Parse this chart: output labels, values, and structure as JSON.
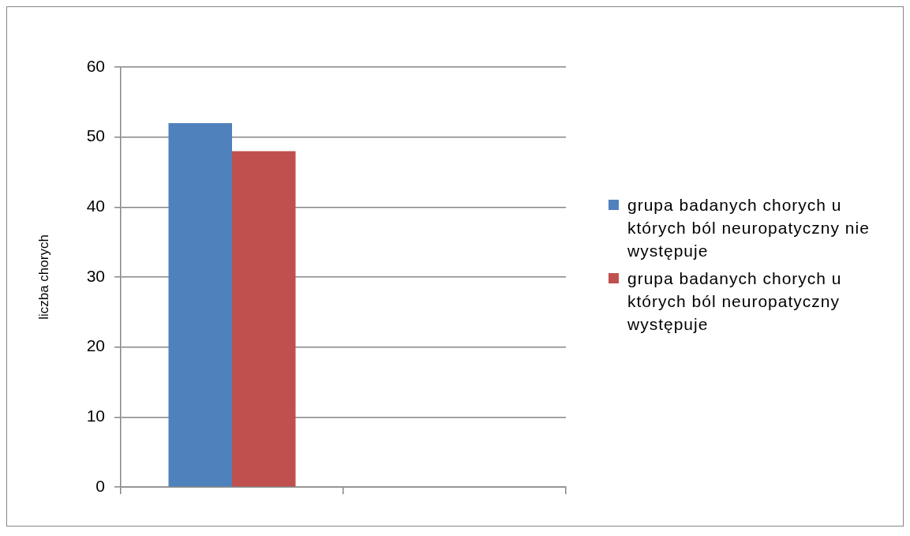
{
  "chart_data": {
    "type": "bar",
    "ylabel": "liczba chorych",
    "categories": [
      null,
      null
    ],
    "series": [
      {
        "name": "grupa badanych chorych u których ból neuropatyczny nie występuje",
        "color": "#4f81bd",
        "values": [
          52,
          null
        ]
      },
      {
        "name": "grupa badanych chorych u których ból neuropatyczny występuje",
        "color": "#c0504d",
        "values": [
          48,
          null
        ]
      }
    ],
    "ylim": [
      0,
      60
    ],
    "yticks": [
      0,
      10,
      20,
      30,
      40,
      50,
      60
    ],
    "grid": "y",
    "legend": "right"
  }
}
